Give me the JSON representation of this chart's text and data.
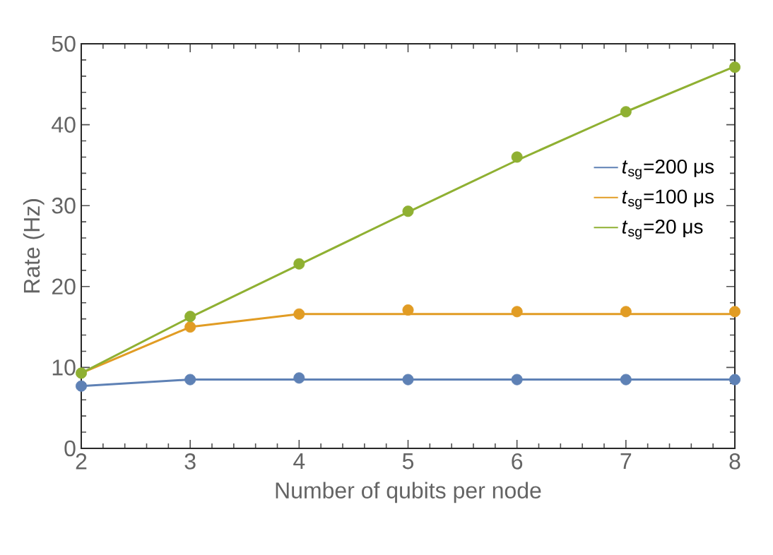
{
  "chart_data": {
    "type": "line",
    "xlabel": "Number of qubits per node",
    "ylabel": "Rate (Hz)",
    "x": [
      2,
      3,
      4,
      5,
      6,
      7,
      8
    ],
    "xlim": [
      2,
      8
    ],
    "xticks": [
      2,
      3,
      4,
      5,
      6,
      7,
      8
    ],
    "ylim": [
      0,
      50
    ],
    "yticks": [
      0,
      10,
      20,
      30,
      40,
      50
    ],
    "legend": "right",
    "marker": "none",
    "series": [
      {
        "name": "*t*$_{sg}$=200 μs",
        "color": "#5e81b5",
        "values": [
          7.7,
          8.5,
          8.5,
          8.5,
          8.5,
          8.5,
          8.5
        ]
      },
      {
        "name": "*t*$_{sg}$=100 μs",
        "color": "#e19c24",
        "values": [
          9.3,
          15.0,
          16.6,
          16.6,
          16.6,
          16.6,
          16.6
        ]
      },
      {
        "name": "*t*$_{sg}$=20 μs",
        "color": "#8fb032",
        "values": [
          9.3,
          16.2,
          22.7,
          29.2,
          35.6,
          41.6,
          47.2
        ]
      },
      {
        "type": "scatter",
        "marker": "circle",
        "color": "#5e81b5",
        "values": [
          7.7,
          8.5,
          8.7,
          8.5,
          8.5,
          8.5,
          8.5
        ]
      },
      {
        "type": "scatter",
        "marker": "circle",
        "color": "#e19c24",
        "values": [
          null,
          15.0,
          16.6,
          17.1,
          16.9,
          16.9,
          16.9
        ]
      },
      {
        "type": "scatter",
        "marker": "circle",
        "color": "#8fb032",
        "values": [
          9.3,
          16.3,
          22.8,
          29.3,
          36.0,
          41.6,
          47.1
        ]
      }
    ]
  }
}
